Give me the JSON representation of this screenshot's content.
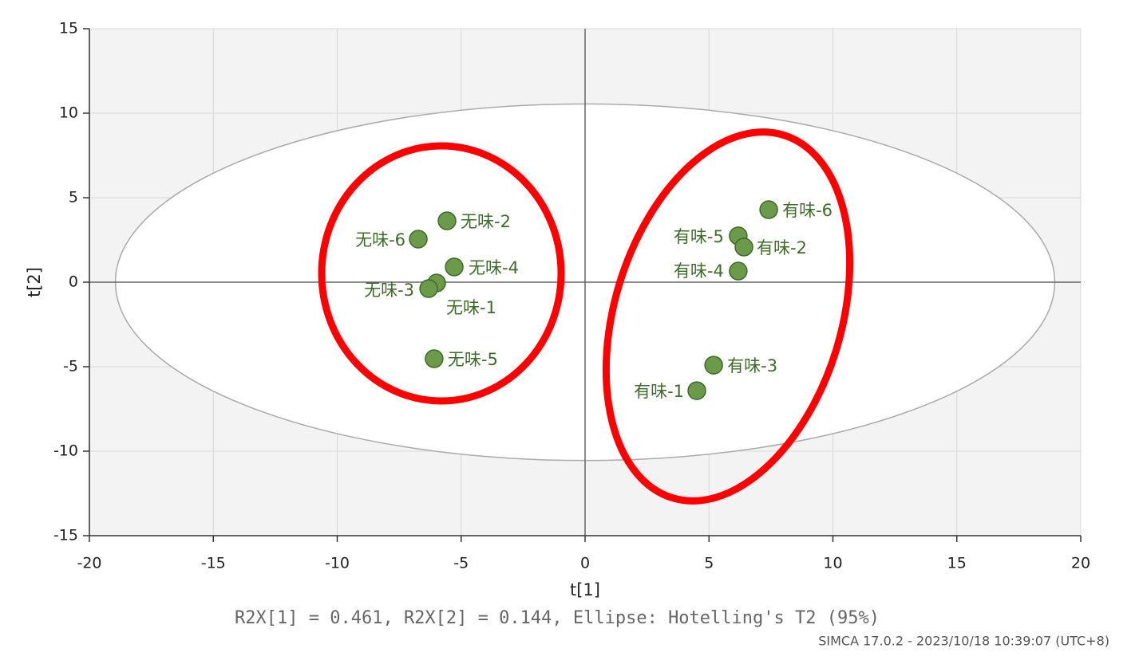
{
  "chart_data": {
    "type": "scatter",
    "x_label": "t[1]",
    "y_label": "t[2]",
    "subtitle": "R2X[1] = 0.461, R2X[2] = 0.144, Ellipse: Hotelling's T2 (95%)",
    "footnote": "SIMCA 17.0.2 - 2023/10/18 10:39:07 (UTC+8)",
    "xlim": [
      -20,
      20
    ],
    "ylim": [
      -15,
      15
    ],
    "xticks": [
      -20,
      -15,
      -10,
      -5,
      0,
      5,
      10,
      15,
      20
    ],
    "yticks": [
      -15,
      -10,
      -5,
      0,
      5,
      10,
      15
    ],
    "grid": true,
    "color": "#6a9a4a",
    "ellipse": {
      "rx": 18.95,
      "ry": 10.55
    },
    "labels": [
      "无味-2",
      "无味-6",
      "无味-4",
      "无味-1",
      "无味-3",
      "无味-5",
      "有味-6",
      "有味-5",
      "有味-2",
      "有味-4",
      "有味-3",
      "有味-1"
    ],
    "x": [
      -5.57,
      -6.73,
      -5.28,
      -5.99,
      -6.31,
      -6.09,
      7.41,
      6.18,
      6.41,
      6.18,
      5.19,
      4.51
    ],
    "values": [
      3.63,
      2.55,
      0.9,
      -0.05,
      -0.38,
      -4.53,
      4.29,
      2.74,
      2.08,
      0.66,
      -4.91,
      -6.42
    ]
  }
}
